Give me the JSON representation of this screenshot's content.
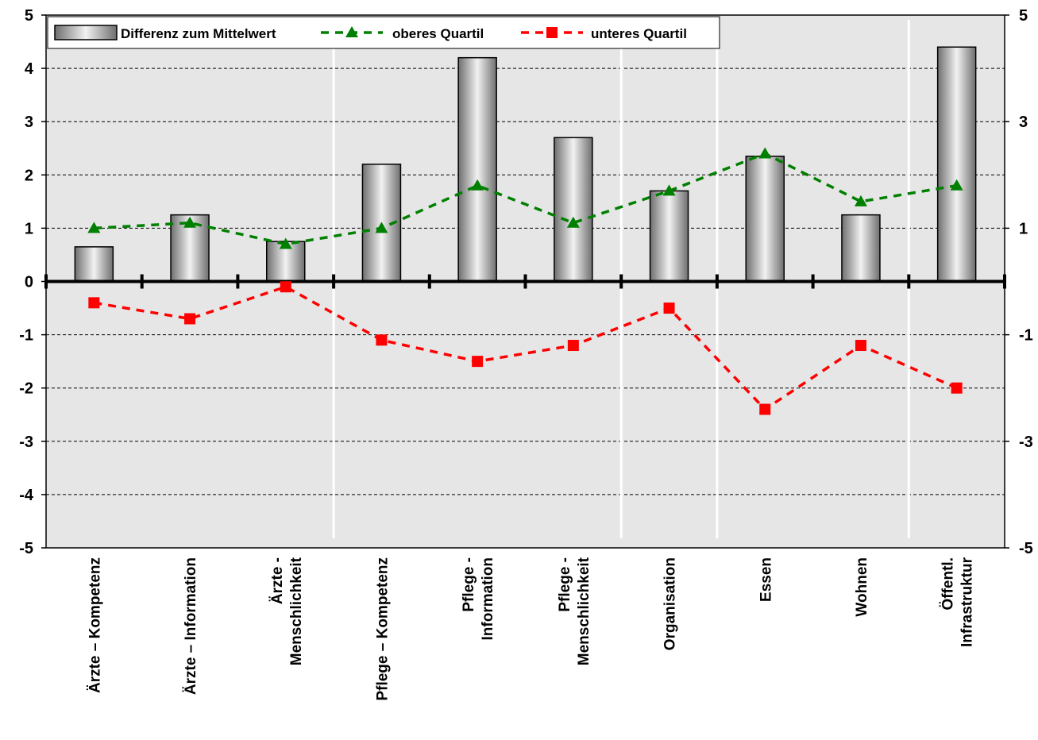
{
  "chart_data": {
    "type": "bar",
    "categories": [
      [
        "Ärzte – Kompetenz"
      ],
      [
        "Ärzte – Information"
      ],
      [
        "Ärzte -",
        "Menschlichkeit"
      ],
      [
        "Pflege – Kompetenz"
      ],
      [
        "Pflege -",
        "Information"
      ],
      [
        "Pflege -",
        "Menschlichkeit"
      ],
      [
        "Organisation"
      ],
      [
        "Essen"
      ],
      [
        "Wohnen"
      ],
      [
        "Öffentl.",
        "Infrastruktur"
      ]
    ],
    "series": [
      {
        "name": "Differenz zum Mittelwert",
        "type": "bar",
        "values": [
          0.65,
          1.25,
          0.75,
          2.2,
          4.2,
          2.7,
          1.7,
          2.35,
          1.25,
          4.4
        ]
      },
      {
        "name": "oberes Quartil",
        "type": "line",
        "marker": "triangle",
        "color": "#008000",
        "values": [
          1.0,
          1.1,
          0.7,
          1.0,
          1.8,
          1.1,
          1.7,
          2.4,
          1.5,
          1.8
        ]
      },
      {
        "name": "unteres Quartil",
        "type": "line",
        "marker": "square",
        "color": "#ff0000",
        "values": [
          -0.4,
          -0.7,
          -0.1,
          -1.1,
          -1.5,
          -1.2,
          -0.5,
          -2.4,
          -1.2,
          -2.0
        ]
      }
    ],
    "ylim": [
      -5,
      5
    ],
    "y_ticks_left": [
      "5",
      "4",
      "3",
      "2",
      "1",
      "0",
      "-1",
      "-2",
      "-3",
      "-4",
      "-5"
    ],
    "y_ticks_right": [
      "5",
      "3",
      "1",
      "-1",
      "-3",
      "-5"
    ],
    "grid": "horizontal dashed",
    "legend_position": "top-left",
    "plot_background": "#e6e6e6"
  }
}
